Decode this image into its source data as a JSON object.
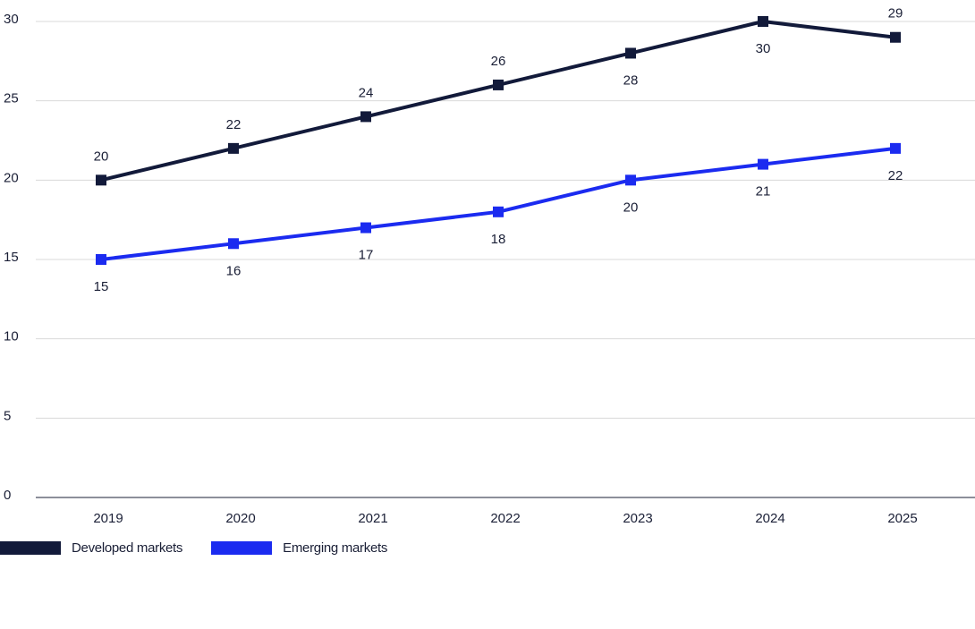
{
  "chart_data": {
    "type": "line",
    "title": "",
    "xlabel": "",
    "ylabel": "",
    "categories": [
      "2019",
      "2020",
      "2021",
      "2022",
      "2023",
      "2024",
      "2025"
    ],
    "y_ticks": [
      "0",
      "5",
      "10",
      "15",
      "20",
      "25",
      "30"
    ],
    "ylim": [
      0,
      30
    ],
    "grid": "horizontal",
    "legend_position": "bottom-left",
    "series": [
      {
        "name": "Developed markets",
        "color": "#121a3a",
        "values": [
          20,
          22,
          24,
          26,
          28,
          30,
          29
        ],
        "label_position": [
          "above",
          "above",
          "above",
          "above",
          "below",
          "below",
          "above"
        ]
      },
      {
        "name": "Emerging markets",
        "color": "#1b2bf0",
        "values": [
          15,
          16,
          17,
          18,
          20,
          21,
          22
        ],
        "label_position": [
          "below",
          "below",
          "below",
          "below",
          "below",
          "below",
          "below"
        ]
      }
    ]
  }
}
